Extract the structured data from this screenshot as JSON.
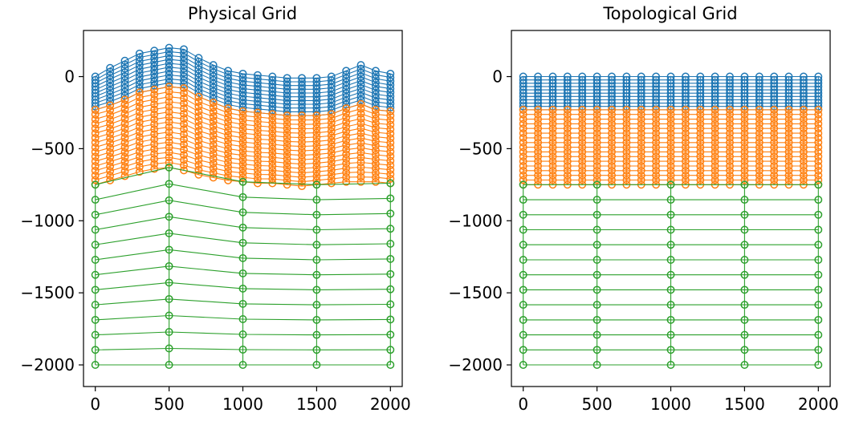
{
  "chart_data": [
    {
      "type": "line",
      "title": "Physical Grid",
      "xlim": [
        -80,
        2080
      ],
      "ylim": [
        -2150,
        320
      ],
      "xticks": [
        0,
        500,
        1000,
        1500,
        2000
      ],
      "xtick_labels": [
        "0",
        "500",
        "1000",
        "1500",
        "2000"
      ],
      "yticks": [
        0,
        -500,
        -1000,
        -1500,
        -2000
      ],
      "ytick_labels": [
        "0",
        "−500",
        "−1000",
        "−1500",
        "−2000"
      ],
      "grid": false,
      "legend": null,
      "series": [
        {
          "color": "#1f77b4",
          "x": [
            0,
            100,
            200,
            300,
            400,
            500,
            600,
            700,
            800,
            900,
            1000,
            1100,
            1200,
            1300,
            1400,
            1500,
            1600,
            1700,
            1800,
            1900,
            2000
          ],
          "top": [
            0,
            60,
            110,
            160,
            180,
            200,
            190,
            130,
            80,
            40,
            20,
            10,
            0,
            -10,
            -10,
            -10,
            0,
            40,
            80,
            40,
            20
          ],
          "bottom": [
            -230,
            -200,
            -160,
            -110,
            -90,
            -70,
            -80,
            -140,
            -180,
            -220,
            -240,
            -250,
            -260,
            -270,
            -270,
            -270,
            -260,
            -220,
            -190,
            -230,
            -240
          ],
          "num_layers": 10
        },
        {
          "color": "#ff7f0e",
          "x": [
            0,
            100,
            200,
            300,
            400,
            500,
            600,
            700,
            800,
            900,
            1000,
            1100,
            1200,
            1300,
            1400,
            1500,
            1600,
            1700,
            1800,
            1900,
            2000
          ],
          "top": [
            -230,
            -200,
            -160,
            -110,
            -90,
            -70,
            -80,
            -140,
            -180,
            -220,
            -240,
            -250,
            -260,
            -270,
            -270,
            -270,
            -260,
            -220,
            -190,
            -230,
            -240
          ],
          "bottom": [
            -750,
            -720,
            -690,
            -660,
            -640,
            -630,
            -650,
            -680,
            -700,
            -720,
            -730,
            -740,
            -740,
            -750,
            -760,
            -750,
            -740,
            -730,
            -730,
            -730,
            -740
          ],
          "num_layers": 16
        },
        {
          "color": "#2ca02c",
          "x": [
            0,
            500,
            1000,
            1500,
            2000
          ],
          "top": [
            -750,
            -630,
            -730,
            -750,
            -740
          ],
          "bottom": [
            -2000,
            -2000,
            -2000,
            -2000,
            -2000
          ],
          "num_layers": 12
        }
      ]
    },
    {
      "type": "line",
      "title": "Topological Grid",
      "xlim": [
        -80,
        2080
      ],
      "ylim": [
        -2150,
        320
      ],
      "xticks": [
        0,
        500,
        1000,
        1500,
        2000
      ],
      "xtick_labels": [
        "0",
        "500",
        "1000",
        "1500",
        "2000"
      ],
      "yticks": [
        0,
        -500,
        -1000,
        -1500,
        -2000
      ],
      "ytick_labels": [
        "0",
        "−500",
        "−1000",
        "−1500",
        "−2000"
      ],
      "grid": false,
      "legend": null,
      "series": [
        {
          "color": "#1f77b4",
          "x": [
            0,
            100,
            200,
            300,
            400,
            500,
            600,
            700,
            800,
            900,
            1000,
            1100,
            1200,
            1300,
            1400,
            1500,
            1600,
            1700,
            1800,
            1900,
            2000
          ],
          "top": [
            0,
            0,
            0,
            0,
            0,
            0,
            0,
            0,
            0,
            0,
            0,
            0,
            0,
            0,
            0,
            0,
            0,
            0,
            0,
            0,
            0
          ],
          "bottom": [
            -230,
            -230,
            -230,
            -230,
            -230,
            -230,
            -230,
            -230,
            -230,
            -230,
            -230,
            -230,
            -230,
            -230,
            -230,
            -230,
            -230,
            -230,
            -230,
            -230,
            -230
          ],
          "num_layers": 10
        },
        {
          "color": "#ff7f0e",
          "x": [
            0,
            100,
            200,
            300,
            400,
            500,
            600,
            700,
            800,
            900,
            1000,
            1100,
            1200,
            1300,
            1400,
            1500,
            1600,
            1700,
            1800,
            1900,
            2000
          ],
          "top": [
            -230,
            -230,
            -230,
            -230,
            -230,
            -230,
            -230,
            -230,
            -230,
            -230,
            -230,
            -230,
            -230,
            -230,
            -230,
            -230,
            -230,
            -230,
            -230,
            -230,
            -230
          ],
          "bottom": [
            -750,
            -750,
            -750,
            -750,
            -750,
            -750,
            -750,
            -750,
            -750,
            -750,
            -750,
            -750,
            -750,
            -750,
            -750,
            -750,
            -750,
            -750,
            -750,
            -750,
            -750
          ],
          "num_layers": 16
        },
        {
          "color": "#2ca02c",
          "x": [
            0,
            500,
            1000,
            1500,
            2000
          ],
          "top": [
            -750,
            -750,
            -750,
            -750,
            -750
          ],
          "bottom": [
            -2000,
            -2000,
            -2000,
            -2000,
            -2000
          ],
          "num_layers": 12
        }
      ]
    }
  ]
}
